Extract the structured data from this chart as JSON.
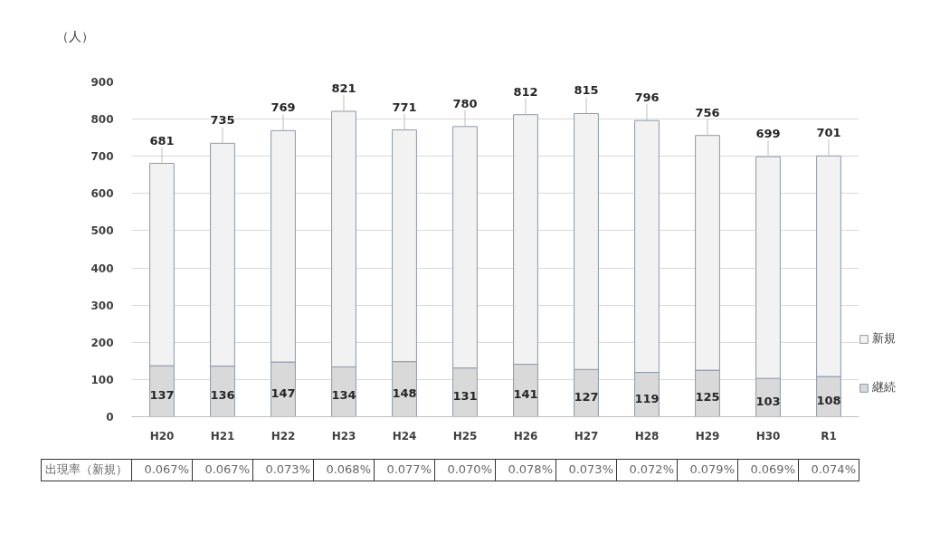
{
  "chart_data": {
    "type": "bar",
    "ylabel": "（人）",
    "categories": [
      "H20",
      "H21",
      "H22",
      "H23",
      "H24",
      "H25",
      "H26",
      "H27",
      "H28",
      "H29",
      "H30",
      "R1"
    ],
    "series": [
      {
        "name": "継続",
        "color": "#d9d9d9",
        "values": [
          137,
          136,
          147,
          134,
          148,
          131,
          141,
          127,
          119,
          125,
          103,
          108
        ],
        "value_labels": [
          "137",
          "136",
          "147",
          "134",
          "148",
          "131",
          "141",
          "127",
          "119",
          "125",
          "103",
          "108"
        ]
      },
      {
        "name": "新規",
        "color": "#f2f2f2",
        "values": [
          544,
          599,
          622,
          687,
          623,
          649,
          671,
          688,
          677,
          631,
          596,
          593
        ]
      }
    ],
    "stacked": true,
    "totals": [
      "681",
      "735",
      "769",
      "821",
      "771",
      "780",
      "812",
      "815",
      "796",
      "756",
      "699",
      "701"
    ],
    "ylim": [
      0,
      900
    ],
    "yticks": [
      0,
      100,
      200,
      300,
      400,
      500,
      600,
      700,
      800,
      900
    ],
    "grid": "y",
    "legend": "right",
    "annotations": [
      "出現率（新規）",
      "0.067%",
      "0.067%",
      "0.073%",
      "0.068%",
      "0.077%",
      "0.070%",
      "0.078%",
      "0.073%",
      "0.072%",
      "0.079%",
      "0.069%",
      "0.074%"
    ]
  }
}
